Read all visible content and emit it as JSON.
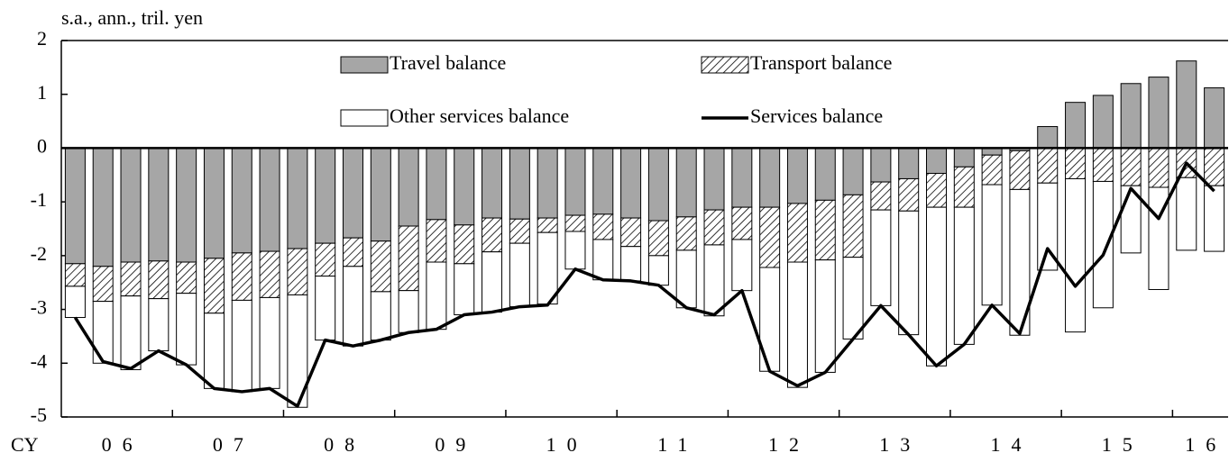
{
  "chart_data": {
    "type": "bar",
    "y_label": "s.a., ann., tril. yen",
    "x_prefix": "CY",
    "year_labels": [
      "06",
      "07",
      "08",
      "09",
      "10",
      "11",
      "12",
      "13",
      "14",
      "15",
      "16"
    ],
    "categories": [
      null,
      null,
      null,
      null,
      null,
      null,
      null,
      null,
      null,
      null,
      null,
      null,
      null,
      null,
      null,
      null,
      null,
      null,
      null,
      null,
      null,
      null,
      null,
      null,
      null,
      null,
      null,
      null,
      null,
      null,
      null,
      null,
      null,
      null,
      null,
      null,
      null,
      null,
      null,
      null,
      null,
      null
    ],
    "ylim": [
      -5,
      2
    ],
    "yticks": [
      2,
      1,
      0,
      -1,
      -2,
      -3,
      -4,
      -5
    ],
    "legend": "top",
    "series": [
      {
        "name": "Travel balance",
        "color": "#a6a6a6",
        "kind": "bar",
        "values": [
          -2.15,
          -2.2,
          -2.12,
          -2.1,
          -2.12,
          -2.05,
          -1.95,
          -1.92,
          -1.87,
          -1.77,
          -1.67,
          -1.73,
          -1.45,
          -1.33,
          -1.43,
          -1.3,
          -1.32,
          -1.3,
          -1.25,
          -1.23,
          -1.3,
          -1.35,
          -1.28,
          -1.15,
          -1.1,
          -1.1,
          -1.03,
          -0.97,
          -0.87,
          -0.63,
          -0.57,
          -0.47,
          -0.35,
          -0.13,
          -0.05,
          0.4,
          0.85,
          0.98,
          1.2,
          1.32,
          1.62,
          1.12
        ]
      },
      {
        "name": "Transport balance",
        "color": "#000000",
        "kind": "hatch",
        "values": [
          -0.42,
          -0.65,
          -0.63,
          -0.7,
          -0.58,
          -1.02,
          -0.88,
          -0.86,
          -0.86,
          -0.61,
          -0.53,
          -0.94,
          -1.2,
          -0.79,
          -0.72,
          -0.63,
          -0.45,
          -0.27,
          -0.3,
          -0.47,
          -0.53,
          -0.65,
          -0.62,
          -0.65,
          -0.6,
          -1.12,
          -1.09,
          -1.11,
          -1.16,
          -0.52,
          -0.6,
          -0.63,
          -0.75,
          -0.55,
          -0.72,
          -0.65,
          -0.57,
          -0.62,
          -0.7,
          -0.73,
          -0.55,
          -0.7
        ]
      },
      {
        "name": "Other services balance",
        "color": "#ffffff",
        "kind": "bar",
        "values": [
          -0.58,
          -1.15,
          -1.37,
          -0.97,
          -1.33,
          -1.4,
          -1.7,
          -1.69,
          -2.09,
          -1.19,
          -1.48,
          -0.9,
          -0.78,
          -1.25,
          -0.95,
          -1.12,
          -1.18,
          -1.33,
          -0.7,
          -0.75,
          -0.64,
          -0.55,
          -1.07,
          -1.32,
          -0.95,
          -1.93,
          -2.33,
          -2.09,
          -1.52,
          -1.78,
          -2.3,
          -2.95,
          -2.55,
          -2.24,
          -2.71,
          -1.62,
          -2.85,
          -2.35,
          -1.25,
          -1.9,
          -1.35,
          -1.22
        ]
      },
      {
        "name": "Services balance",
        "color": "#000000",
        "kind": "line",
        "values": [
          -3.15,
          -3.97,
          -4.1,
          -3.77,
          -4.03,
          -4.47,
          -4.53,
          -4.47,
          -4.8,
          -3.57,
          -3.68,
          -3.57,
          -3.43,
          -3.37,
          -3.1,
          -3.05,
          -2.95,
          -2.92,
          -2.25,
          -2.45,
          -2.47,
          -2.55,
          -2.97,
          -3.1,
          -2.65,
          -4.15,
          -4.42,
          -4.17,
          -3.55,
          -2.93,
          -3.47,
          -4.05,
          -3.65,
          -2.92,
          -3.45,
          -1.87,
          -2.57,
          -1.99,
          -0.75,
          -1.31,
          -0.28,
          -0.8
        ]
      }
    ]
  }
}
